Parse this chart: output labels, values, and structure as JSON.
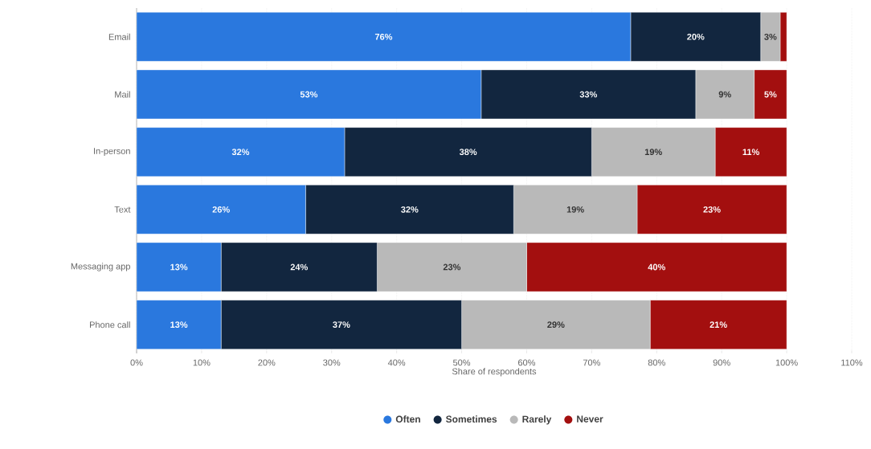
{
  "chart_data": {
    "type": "bar",
    "orientation": "horizontal",
    "stacked": true,
    "xlabel": "Share of respondents",
    "categories": [
      "Email",
      "Mail",
      "In-person",
      "Text",
      "Messaging app",
      "Phone call"
    ],
    "xlim": [
      0,
      110
    ],
    "xticks": [
      {
        "value": 0,
        "label": "0%"
      },
      {
        "value": 10,
        "label": "10%"
      },
      {
        "value": 20,
        "label": "20%"
      },
      {
        "value": 30,
        "label": "30%"
      },
      {
        "value": 40,
        "label": "40%"
      },
      {
        "value": 50,
        "label": "50%"
      },
      {
        "value": 60,
        "label": "60%"
      },
      {
        "value": 70,
        "label": "70%"
      },
      {
        "value": 80,
        "label": "80%"
      },
      {
        "value": 90,
        "label": "90%"
      },
      {
        "value": 100,
        "label": "100%"
      },
      {
        "value": 110,
        "label": "110%"
      }
    ],
    "grid": "x",
    "legend": "bottom",
    "series": [
      {
        "name": "Often",
        "color": "#2a78de",
        "values": [
          76,
          53,
          32,
          26,
          13,
          13
        ],
        "value_labels": [
          "76%",
          "53%",
          "32%",
          "26%",
          "13%",
          "13%"
        ]
      },
      {
        "name": "Sometimes",
        "color": "#12263f",
        "values": [
          20,
          33,
          38,
          32,
          24,
          37
        ],
        "value_labels": [
          "20%",
          "33%",
          "38%",
          "32%",
          "24%",
          "37%"
        ]
      },
      {
        "name": "Rarely",
        "color": "#b9b9b9",
        "values": [
          3,
          9,
          19,
          19,
          23,
          29
        ],
        "value_labels": [
          "3%",
          "9%",
          "19%",
          "19%",
          "23%",
          "29%"
        ]
      },
      {
        "name": "Never",
        "color": "#a30f0f",
        "values": [
          1,
          5,
          11,
          23,
          40,
          21
        ],
        "value_labels": [
          null,
          "5%",
          "11%",
          "23%",
          "40%",
          "21%"
        ]
      }
    ]
  }
}
